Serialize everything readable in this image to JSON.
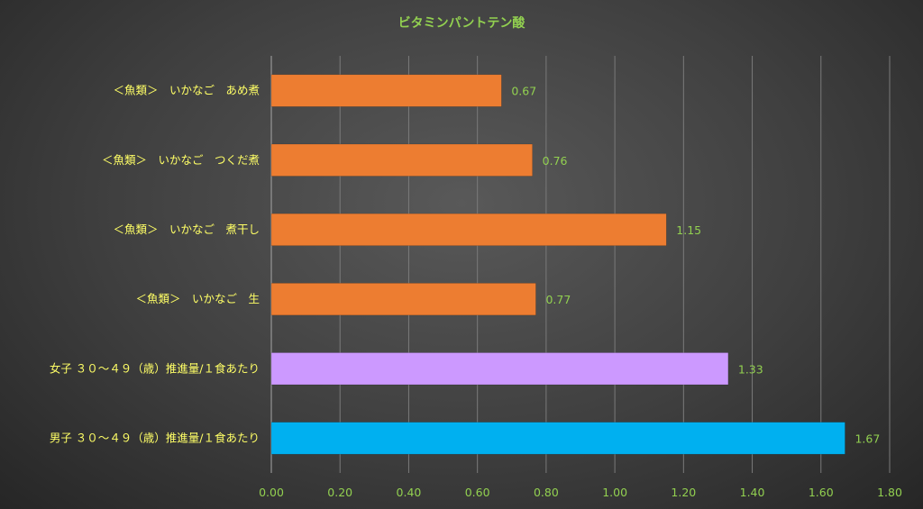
{
  "chart_data": {
    "type": "bar",
    "orientation": "horizontal",
    "title": "ビタミンパントテン酸",
    "categories": [
      "＜魚類＞　いかなご　あめ煮",
      "＜魚類＞　いかなご　つくだ煮",
      "＜魚類＞　いかなご　煮干し",
      "＜魚類＞　いかなご　生",
      "女子 ３０～４９（歳）推進量/１食あたり",
      "男子 ３０～４９（歳）推進量/１食あたり"
    ],
    "values": [
      0.67,
      0.76,
      1.15,
      0.77,
      1.33,
      1.67
    ],
    "data_labels": [
      "0.67",
      "0.76",
      "1.15",
      "0.77",
      "1.33",
      "1.67"
    ],
    "bar_colors": [
      "#ED7D31",
      "#ED7D31",
      "#ED7D31",
      "#ED7D31",
      "#CC99FF",
      "#00B0F0"
    ],
    "xlim": [
      0,
      1.8
    ],
    "xticks": [
      "0.00",
      "0.20",
      "0.40",
      "0.60",
      "0.80",
      "1.00",
      "1.20",
      "1.40",
      "1.60",
      "1.80"
    ],
    "grid": true,
    "legend": "none",
    "colors": {
      "title": "#92D050",
      "category_label": "#FFFF66",
      "tick_label": "#92D050",
      "data_label": "#92D050",
      "gridline": "#7a7a7a"
    }
  }
}
